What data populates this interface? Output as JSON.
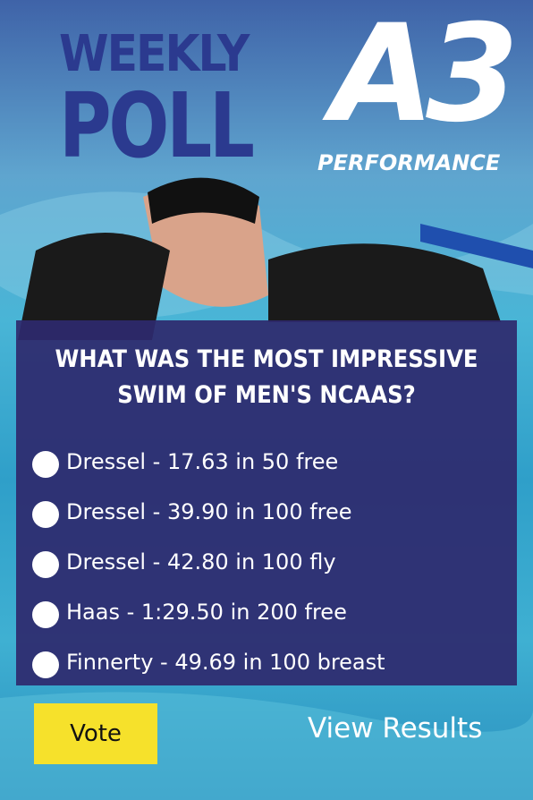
{
  "brand": {
    "weekly": "WEEKLY",
    "poll": "POLL",
    "logo": "A3",
    "logo_sub": "PERFORMANCE"
  },
  "poll": {
    "question": "WHAT WAS THE MOST IMPRESSIVE SWIM OF MEN'S NCAAS?",
    "options": [
      "Dressel - 17.63 in 50 free",
      "Dressel - 39.90 in 100 free",
      "Dressel - 42.80 in 100 fly",
      "Haas - 1:29.50 in 200 free",
      "Finnerty - 49.69 in 100 breast"
    ],
    "vote_button": "Vote",
    "results_link": "View Results"
  }
}
